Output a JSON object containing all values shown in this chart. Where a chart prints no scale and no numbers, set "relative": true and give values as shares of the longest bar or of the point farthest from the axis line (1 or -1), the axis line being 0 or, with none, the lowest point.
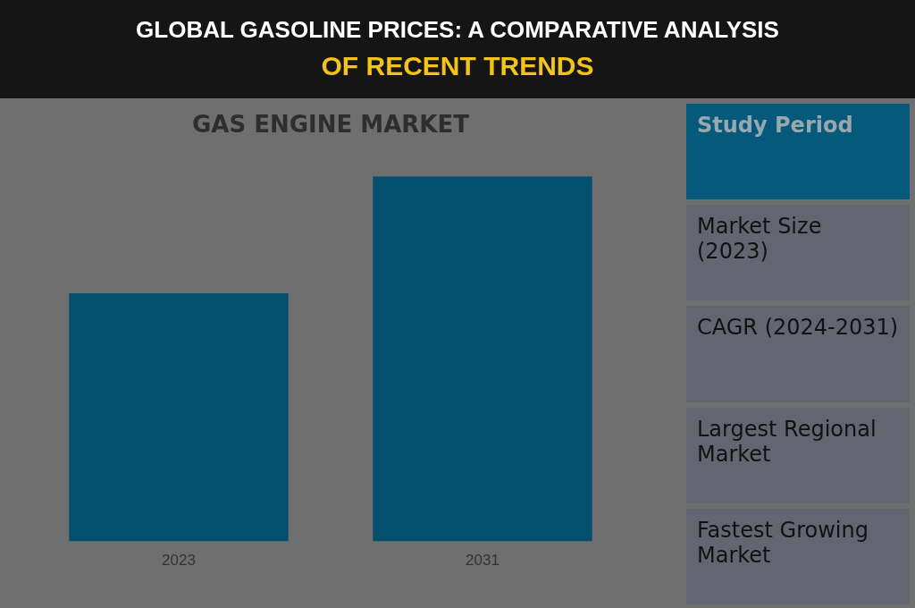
{
  "chart_data": [
    {
      "type": "other",
      "title": "GLOBAL GASOLINE PRICES: A COMPARATIVE ANALYSIS",
      "subtitle": "OF RECENT TRENDS"
    },
    {
      "type": "bar",
      "title": "GAS ENGINE MARKET",
      "categories": [
        "2023",
        "2031"
      ],
      "values": [
        0.68,
        1
      ],
      "color": "#044f6d",
      "relative": true,
      "grid": false,
      "legend": false
    },
    {
      "type": "other",
      "annotations": [
        "Study Period",
        "Market Size (2023)",
        "CAGR (2024-2031)",
        "Largest Regional Market",
        "Fastest Growing Market"
      ]
    }
  ]
}
